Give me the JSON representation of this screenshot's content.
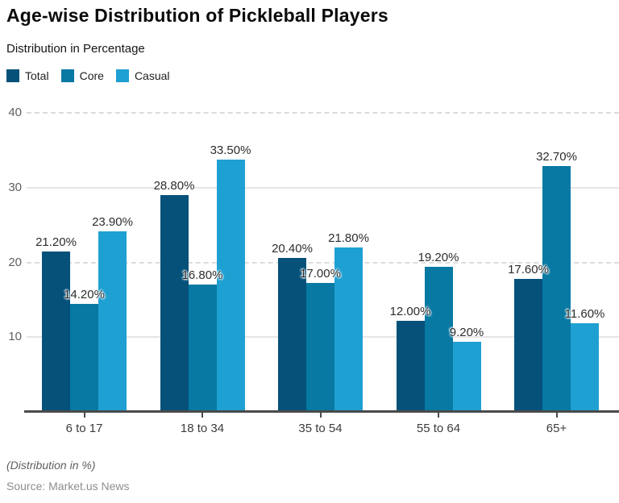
{
  "header": {
    "title": "Age-wise Distribution of Pickleball Players",
    "subtitle": "Distribution in Percentage"
  },
  "legend": [
    {
      "label": "Total",
      "color": "#05517a"
    },
    {
      "label": "Core",
      "color": "#0779a3"
    },
    {
      "label": "Casual",
      "color": "#1fa0d2"
    }
  ],
  "chart_data": {
    "type": "bar",
    "title": "Age-wise Distribution of Pickleball Players",
    "subtitle": "Distribution in Percentage",
    "categories": [
      "6 to 17",
      "18 to 34",
      "35 to 54",
      "55 to 64",
      "65+"
    ],
    "series": [
      {
        "name": "Total",
        "color": "#05517a",
        "values": [
          21.2,
          28.8,
          20.4,
          12.0,
          17.6
        ],
        "labels": [
          "21.20%",
          "28.80%",
          "20.40%",
          "12.00%",
          "17.60%"
        ]
      },
      {
        "name": "Core",
        "color": "#0779a3",
        "values": [
          14.2,
          16.8,
          17.0,
          19.2,
          32.7
        ],
        "labels": [
          "14.20%",
          "16.80%",
          "17.00%",
          "19.20%",
          "32.70%"
        ]
      },
      {
        "name": "Casual",
        "color": "#1fa0d2",
        "values": [
          23.9,
          33.5,
          21.8,
          9.2,
          11.6
        ],
        "labels": [
          "23.90%",
          "33.50%",
          "21.80%",
          "9.20%",
          "11.60%"
        ]
      }
    ],
    "xlabel": "",
    "ylabel": "Distribution in Percentage",
    "ylim": [
      0,
      40
    ],
    "yticks": [
      40,
      30,
      20,
      10
    ],
    "grid": "horizontal",
    "gridline_styles": {
      "40": "dashed",
      "30": "solid",
      "20": "dashed",
      "10": "solid"
    },
    "legend_position": "top-left"
  },
  "footer": {
    "note": "(Distribution in %)",
    "source": "Source: Market.us News"
  }
}
